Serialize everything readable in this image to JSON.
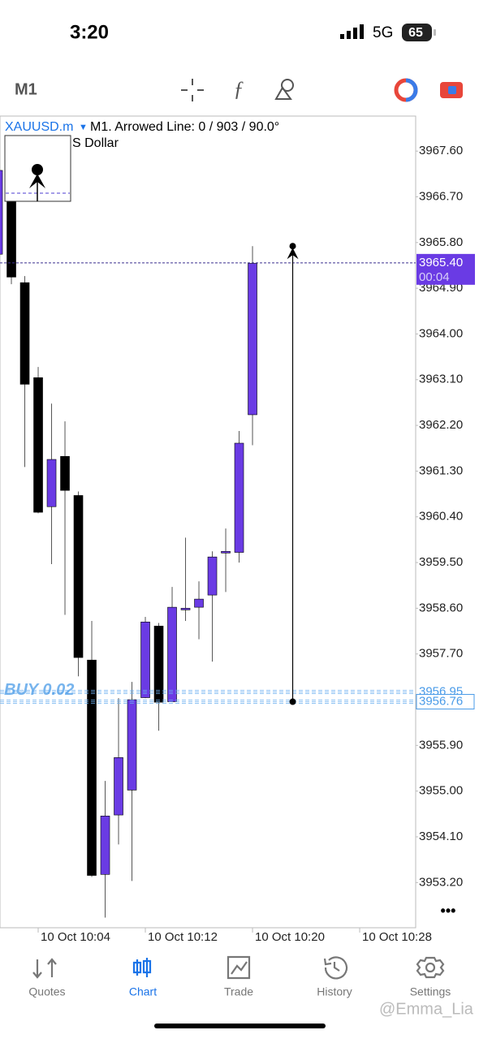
{
  "status_bar": {
    "time": "3:20",
    "network": "5G",
    "battery": "65"
  },
  "toolbar": {
    "timeframe": "M1"
  },
  "chart_data": {
    "type": "candlestick",
    "symbol": "XAUUSD.m",
    "object_info": "M1. Arrowed Line: 0 / 903 / 90.0°",
    "symbol_desc_fragment": "S Dollar",
    "up_color": "#6a3be4",
    "down_color": "#000000",
    "open": [
      3965.57,
      3966.61,
      3965.01,
      3963.14,
      3960.6,
      3961.59,
      3960.82,
      3957.58,
      3953.36,
      3954.53,
      3955.02,
      3956.84,
      3958.25,
      3956.76,
      3958.59,
      3958.62,
      3958.86,
      3959.7,
      3959.7,
      3962.41
    ],
    "high": [
      3967.22,
      3966.61,
      3965.14,
      3963.35,
      3962.63,
      3962.28,
      3960.9,
      3958.35,
      3955.2,
      3956.83,
      3957.15,
      3958.43,
      3958.31,
      3959.02,
      3959.99,
      3959.13,
      3959.72,
      3960.17,
      3962.09,
      3965.73
    ],
    "low": [
      3965.57,
      3964.98,
      3961.38,
      3960.47,
      3959.47,
      3958.47,
      3957.26,
      3953.31,
      3952.51,
      3953.95,
      3953.23,
      3956.83,
      3956.19,
      3956.75,
      3958.35,
      3957.99,
      3957.55,
      3958.92,
      3959.5,
      3961.81
    ],
    "close": [
      3967.22,
      3965.12,
      3963.01,
      3960.49,
      3961.53,
      3960.92,
      3957.63,
      3953.34,
      3954.51,
      3955.66,
      3956.8,
      3958.33,
      3956.75,
      3958.62,
      3958.6,
      3958.78,
      3959.61,
      3959.72,
      3961.85,
      3965.39
    ],
    "ylim": [
      3952.31,
      3968.29
    ],
    "yticks": [
      {
        "value": 3967.6,
        "label": "3967.60"
      },
      {
        "value": 3966.7,
        "label": "3966.70"
      },
      {
        "value": 3965.8,
        "label": "3965.80"
      },
      {
        "value": 3964.9,
        "label": "3964.90"
      },
      {
        "value": 3964,
        "label": "3964.00"
      },
      {
        "value": 3963.1,
        "label": "3963.10"
      },
      {
        "value": 3962.2,
        "label": "3962.20"
      },
      {
        "value": 3961.3,
        "label": "3961.30"
      },
      {
        "value": 3960.4,
        "label": "3960.40"
      },
      {
        "value": 3959.5,
        "label": "3959.50"
      },
      {
        "value": 3958.6,
        "label": "3958.60"
      },
      {
        "value": 3957.7,
        "label": "3957.70"
      },
      {
        "value": 3955.9,
        "label": "3955.90"
      },
      {
        "value": 3955,
        "label": "3955.00"
      },
      {
        "value": 3954.1,
        "label": "3954.10"
      },
      {
        "value": 3953.2,
        "label": "3953.20"
      }
    ],
    "xlim": [
      0.15,
      31.18
    ],
    "xticks": [
      {
        "value": 3,
        "label": "10 Oct 10:04"
      },
      {
        "value": 11,
        "label": "10 Oct 10:12"
      },
      {
        "value": 19,
        "label": "10 Oct 10:20"
      },
      {
        "value": 27,
        "label": "10 Oct 10:28"
      }
    ],
    "bid": {
      "value": 3965.4,
      "label": "3965.40"
    },
    "bid_timer": "00:04",
    "positions": [
      {
        "price": {
          "value": 3956.95,
          "label": "3956.95"
        }
      },
      {
        "price": {
          "value": 3956.76,
          "label": "3956.76"
        },
        "label": "BUY 0.02"
      }
    ],
    "arrowed_line": {
      "x": 22,
      "start": 3956.76,
      "end": 3965.73
    },
    "more": "•••"
  },
  "tabs": [
    "Quotes",
    "Chart",
    "Trade",
    "History",
    "Settings"
  ],
  "watermark": "@Emma_Lia"
}
